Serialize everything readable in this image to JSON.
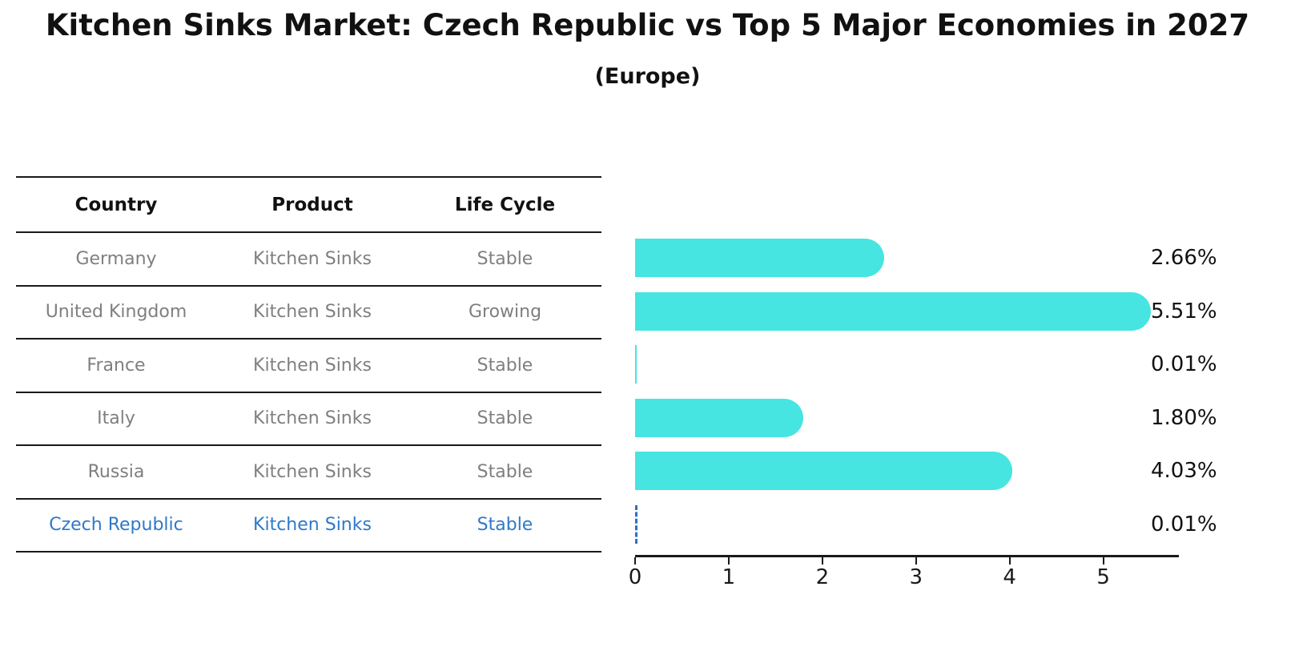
{
  "header": {
    "title": "Kitchen Sinks Market: Czech Republic vs Top 5 Major Economies in 2027",
    "subtitle": "(Europe)"
  },
  "table": {
    "columns": [
      "Country",
      "Product",
      "Life Cycle"
    ],
    "rows": [
      {
        "country": "Germany",
        "product": "Kitchen Sinks",
        "life_cycle": "Stable",
        "highlighted": false
      },
      {
        "country": "United Kingdom",
        "product": "Kitchen Sinks",
        "life_cycle": "Growing",
        "highlighted": false
      },
      {
        "country": "France",
        "product": "Kitchen Sinks",
        "life_cycle": "Stable",
        "highlighted": false
      },
      {
        "country": "Italy",
        "product": "Kitchen Sinks",
        "life_cycle": "Stable",
        "highlighted": false
      },
      {
        "country": "Russia",
        "product": "Kitchen Sinks",
        "life_cycle": "Stable",
        "highlighted": false
      },
      {
        "country": "Czech Republic",
        "product": "Kitchen Sinks",
        "life_cycle": "Stable",
        "highlighted": true
      }
    ]
  },
  "chart_data": {
    "type": "bar",
    "orientation": "horizontal",
    "title": "Kitchen Sinks Market: Czech Republic vs Top 5 Major Economies in 2027",
    "subtitle": "(Europe)",
    "categories": [
      "Germany",
      "United Kingdom",
      "France",
      "Italy",
      "Russia",
      "Czech Republic"
    ],
    "values": [
      2.66,
      5.51,
      0.01,
      1.8,
      4.03,
      0.01
    ],
    "value_labels": [
      "2.66%",
      "5.51%",
      "0.01%",
      "1.80%",
      "4.03%",
      "0.01%"
    ],
    "highlight_index": 5,
    "x_ticks": [
      0,
      1,
      2,
      3,
      4,
      5
    ],
    "xlim": [
      0,
      5.79
    ],
    "xlabel": "",
    "ylabel": "",
    "grid": false,
    "legend": false,
    "bar_color": "#46e5e1",
    "highlight_color": "#2e6ec8"
  },
  "colors": {
    "bar": "#46e5e1",
    "highlight_blue": "#2e6ec8",
    "row_text_gray": "#7f7f7f",
    "text_dark": "#111111"
  }
}
